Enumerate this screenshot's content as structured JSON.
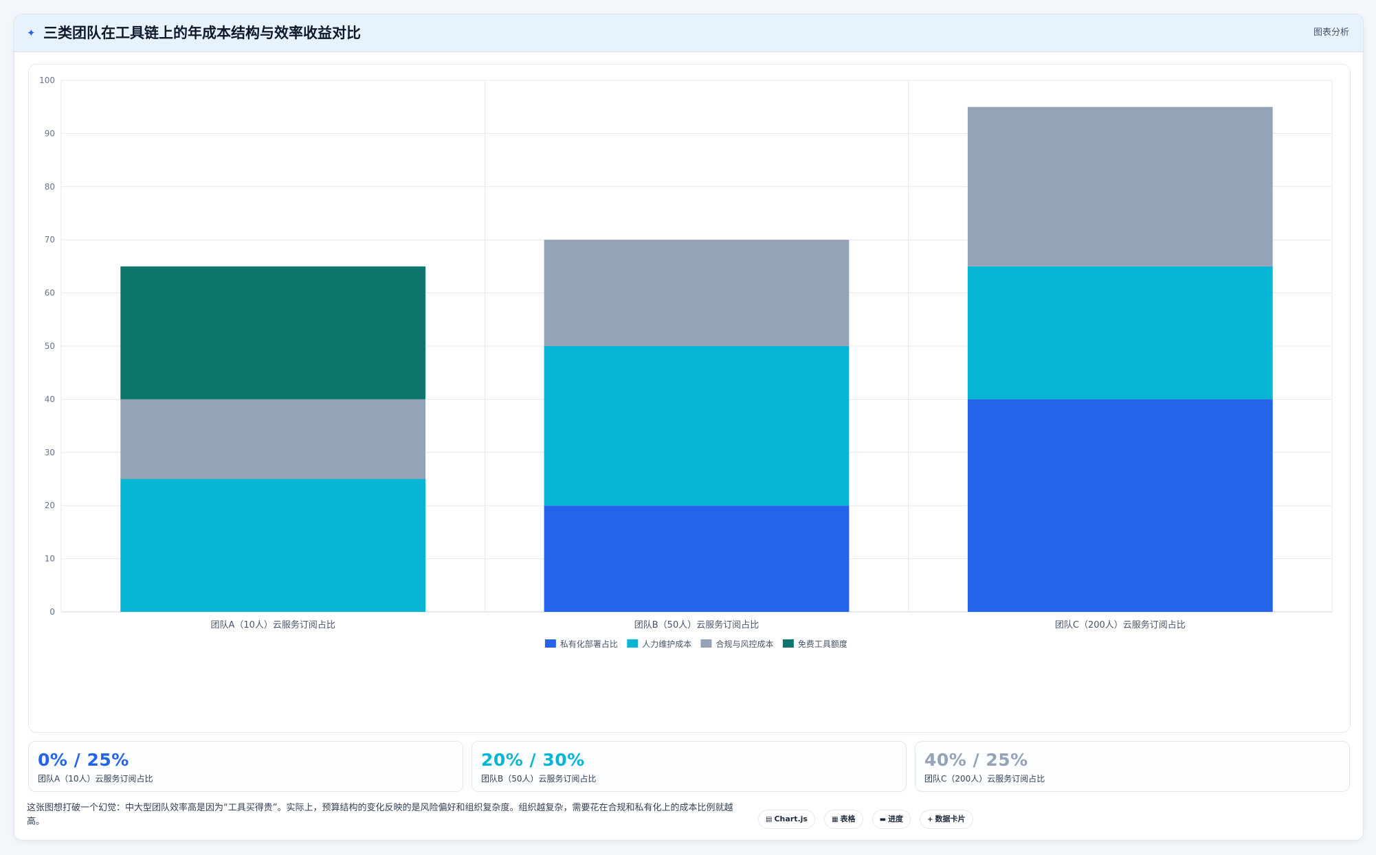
{
  "header": {
    "icon": "sparkle-icon",
    "title": "三类团队在工具链上的年成本结构与效率收益对比",
    "tag": "图表分析"
  },
  "chart_data": {
    "type": "bar",
    "stacked": true,
    "categories": [
      "团队A（10人）云服务订阅占比",
      "团队B（50人）云服务订阅占比",
      "团队C（200人）云服务订阅占比"
    ],
    "series": [
      {
        "name": "私有化部署占比",
        "color": "#2563eb",
        "values": [
          0,
          20,
          40
        ]
      },
      {
        "name": "人力维护成本",
        "color": "#06b6d4",
        "values": [
          25,
          30,
          25
        ]
      },
      {
        "name": "合规与风控成本",
        "color": "#94a3b8",
        "values": [
          15,
          20,
          30
        ]
      },
      {
        "name": "免费工具额度",
        "color": "#0f766e",
        "values": [
          25,
          0,
          0
        ]
      }
    ],
    "ylim": [
      0,
      100
    ],
    "yticks": [
      0,
      10,
      20,
      30,
      40,
      50,
      60,
      70,
      80,
      90,
      100
    ],
    "grid": true,
    "legend": "bottom"
  },
  "stats": [
    {
      "value": "0% / 25%",
      "label": "团队A（10人）云服务订阅占比",
      "color": "#2563eb"
    },
    {
      "value": "20% / 30%",
      "label": "团队B（50人）云服务订阅占比",
      "color": "#06b6d4"
    },
    {
      "value": "40% / 25%",
      "label": "团队C（200人）云服务订阅占比",
      "color": "#94a3b8"
    }
  ],
  "footnote": "这张图想打破一个幻觉：中大型团队效率高是因为“工具买得贵”。实际上，预算结构的变化反映的是风险偏好和组织复杂度。组织越复杂，需要花在合规和私有化上的成本比例就越高。",
  "pills": [
    {
      "icon": "▤",
      "label": "Chart.js"
    },
    {
      "icon": "▦",
      "label": "表格"
    },
    {
      "icon": "▬",
      "label": "进度"
    },
    {
      "icon": "+",
      "label": "数据卡片"
    }
  ]
}
